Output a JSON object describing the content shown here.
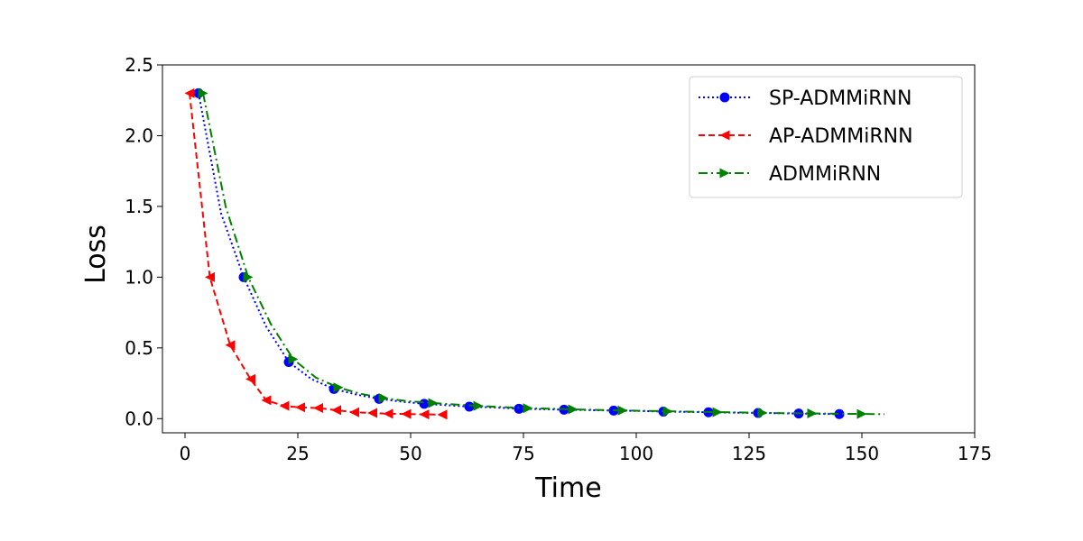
{
  "chart_data": {
    "type": "line",
    "title": "",
    "xlabel": "Time",
    "ylabel": "Loss",
    "xlim": [
      -5,
      175
    ],
    "ylim": [
      -0.1,
      2.5
    ],
    "xticks": [
      0,
      25,
      50,
      75,
      100,
      125,
      150,
      175
    ],
    "yticks": [
      0.0,
      0.5,
      1.0,
      1.5,
      2.0,
      2.5
    ],
    "xtick_labels": [
      "0",
      "25",
      "50",
      "75",
      "100",
      "125",
      "150",
      "175"
    ],
    "ytick_labels": [
      "0.0",
      "0.5",
      "1.0",
      "1.5",
      "2.0",
      "2.5"
    ],
    "grid": false,
    "legend_position": "top-right",
    "series": [
      {
        "name": "SP-ADMMiRNN",
        "color": "#0000ff",
        "linestyle": "dotted",
        "marker": "circle",
        "x": [
          3,
          8,
          13,
          18,
          23,
          28,
          33,
          38,
          43,
          48,
          53,
          58,
          63,
          68,
          74,
          79,
          84,
          90,
          95,
          101,
          106,
          111,
          116,
          121,
          127,
          132,
          136,
          141,
          145
        ],
        "y": [
          2.3,
          1.45,
          1.0,
          0.65,
          0.4,
          0.28,
          0.21,
          0.17,
          0.14,
          0.12,
          0.105,
          0.095,
          0.085,
          0.08,
          0.07,
          0.067,
          0.063,
          0.06,
          0.057,
          0.054,
          0.05,
          0.048,
          0.045,
          0.043,
          0.04,
          0.038,
          0.036,
          0.034,
          0.032
        ]
      },
      {
        "name": "AP-ADMMiRNN",
        "color": "#ff0000",
        "linestyle": "dashed",
        "marker": "triangle-left",
        "x": [
          1,
          5.5,
          10,
          14.5,
          18,
          22,
          25.5,
          29.5,
          33.5,
          37.5,
          41.5,
          45,
          49,
          53,
          57
        ],
        "y": [
          2.3,
          1.0,
          0.52,
          0.28,
          0.13,
          0.09,
          0.08,
          0.075,
          0.06,
          0.045,
          0.04,
          0.035,
          0.033,
          0.03,
          0.028
        ]
      },
      {
        "name": "ADMMiRNN",
        "color": "#008000",
        "linestyle": "dashdot",
        "marker": "triangle-right",
        "x": [
          4,
          9,
          14,
          19,
          24,
          29,
          34,
          39,
          44,
          49,
          55,
          60,
          65,
          70,
          76,
          81,
          86,
          91,
          97,
          102,
          107,
          112,
          118,
          123,
          128,
          133,
          139,
          144,
          150,
          155
        ],
        "y": [
          2.3,
          1.5,
          1.0,
          0.67,
          0.42,
          0.29,
          0.22,
          0.175,
          0.145,
          0.125,
          0.11,
          0.1,
          0.09,
          0.082,
          0.074,
          0.07,
          0.066,
          0.062,
          0.058,
          0.055,
          0.052,
          0.049,
          0.046,
          0.044,
          0.041,
          0.039,
          0.037,
          0.035,
          0.033,
          0.032
        ]
      }
    ],
    "markevery": [
      [
        0,
        2,
        4,
        6,
        8,
        10,
        12,
        14,
        16,
        18,
        20,
        22,
        24,
        26,
        28
      ],
      [
        0,
        1,
        2,
        3,
        4,
        5,
        6,
        7,
        8,
        9,
        10,
        11,
        12,
        13,
        14
      ],
      [
        0,
        2,
        4,
        6,
        8,
        10,
        12,
        14,
        16,
        18,
        20,
        22,
        24,
        26,
        28
      ]
    ]
  }
}
